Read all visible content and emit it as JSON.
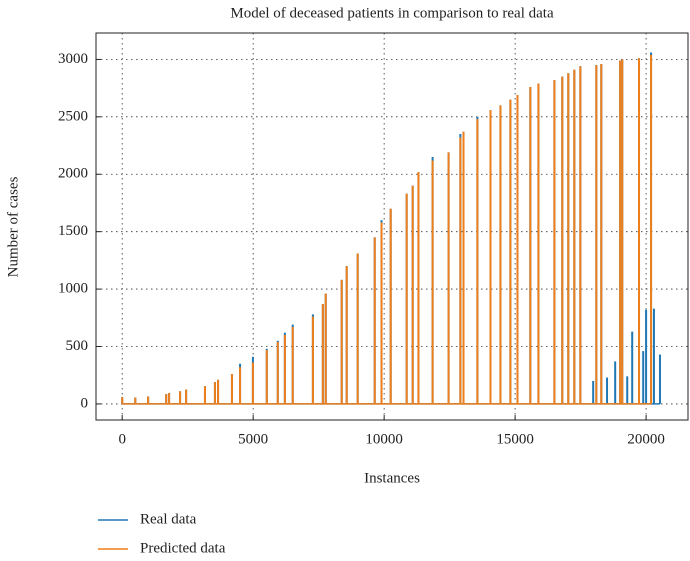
{
  "chart_data": {
    "type": "line",
    "title": "Model of deceased patients in comparison to real data",
    "xlabel": "Instances",
    "ylabel": "Number of cases",
    "xlim": [
      -1000,
      21600
    ],
    "ylim": [
      -140,
      3230
    ],
    "xticks": [
      0,
      5000,
      10000,
      15000,
      20000
    ],
    "yticks": [
      0,
      500,
      1000,
      1500,
      2000,
      2500,
      3000
    ],
    "grid": true,
    "legend": "below",
    "series": [
      {
        "name": "Real data",
        "color": "#1f77b4",
        "x": [
          0,
          500,
          990,
          1680,
          1790,
          2210,
          2440,
          3160,
          3540,
          3660,
          4190,
          4500,
          4990,
          5520,
          5940,
          6210,
          6510,
          7280,
          7660,
          7770,
          8380,
          8570,
          8990,
          9640,
          9900,
          10250,
          10860,
          11090,
          11310,
          11850,
          12460,
          12910,
          13030,
          13560,
          14060,
          14440,
          14820,
          15090,
          15580,
          15890,
          16500,
          16800,
          17030,
          17260,
          17490,
          17980,
          18100,
          18290,
          18510,
          18820,
          19010,
          19090,
          19280,
          19470,
          19730,
          19890,
          20000,
          20190,
          20300,
          20530
        ],
        "values": [
          60,
          55,
          65,
          85,
          95,
          110,
          125,
          155,
          190,
          210,
          260,
          350,
          410,
          480,
          550,
          620,
          690,
          780,
          870,
          960,
          1080,
          1200,
          1310,
          1450,
          1600,
          1700,
          1830,
          1900,
          2020,
          2150,
          2190,
          2350,
          2370,
          2500,
          2560,
          2600,
          2650,
          2690,
          2760,
          2790,
          2820,
          2850,
          2880,
          2910,
          2940,
          200,
          2950,
          2960,
          230,
          370,
          2990,
          3000,
          240,
          630,
          3010,
          460,
          820,
          3060,
          830,
          430
        ]
      },
      {
        "name": "Predicted data",
        "color": "#ee7f1a",
        "x": [
          0,
          500,
          990,
          1680,
          1790,
          2210,
          2440,
          3160,
          3540,
          3660,
          4190,
          4500,
          4990,
          5520,
          5940,
          6210,
          6510,
          7280,
          7660,
          7770,
          8380,
          8570,
          8990,
          9640,
          9900,
          10250,
          10860,
          11090,
          11310,
          11850,
          12460,
          12910,
          13030,
          13560,
          14060,
          14440,
          14820,
          15090,
          15580,
          15890,
          16500,
          16800,
          17030,
          17260,
          17490,
          18100,
          18290,
          19010,
          19090,
          19730,
          20190
        ],
        "values": [
          60,
          55,
          65,
          85,
          95,
          110,
          125,
          155,
          190,
          210,
          260,
          320,
          360,
          470,
          540,
          600,
          670,
          760,
          870,
          960,
          1080,
          1200,
          1310,
          1450,
          1580,
          1700,
          1830,
          1900,
          2020,
          2120,
          2190,
          2320,
          2370,
          2480,
          2560,
          2600,
          2650,
          2690,
          2760,
          2790,
          2820,
          2850,
          2880,
          2910,
          2940,
          2950,
          2960,
          2990,
          3000,
          3010,
          3040
        ]
      }
    ]
  }
}
